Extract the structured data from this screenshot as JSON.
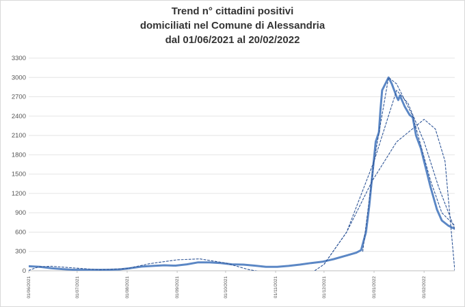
{
  "chart_data": {
    "type": "line",
    "title_lines": [
      "Trend n° cittadini positivi",
      "domiciliati nel Comune di Alessandria",
      "dal 01/06/2021 al 20/02/2022"
    ],
    "start_date": "01/06/2021",
    "end_date": "20/02/2022",
    "ylim": [
      0,
      3300
    ],
    "yticks": [
      "0",
      "300",
      "600",
      "900",
      "1200",
      "1500",
      "1800",
      "2100",
      "2400",
      "2700",
      "3000",
      "3300"
    ],
    "xticks": [
      "01/06/2021",
      "01/07/2021",
      "01/08/2021",
      "01/09/2021",
      "01/10/2021",
      "01/11/2021",
      "01/12/2021",
      "01/01/2022",
      "01/02/2022"
    ],
    "grid": "horizontal",
    "series": [
      {
        "color": "#5b87c5",
        "style": "solid",
        "points": [
          [
            "01/06/2021",
            70
          ],
          [
            "08/06/2021",
            60
          ],
          [
            "15/06/2021",
            40
          ],
          [
            "22/06/2021",
            25
          ],
          [
            "29/06/2021",
            15
          ],
          [
            "06/07/2021",
            15
          ],
          [
            "13/07/2021",
            15
          ],
          [
            "20/07/2021",
            15
          ],
          [
            "27/07/2021",
            20
          ],
          [
            "03/08/2021",
            40
          ],
          [
            "10/08/2021",
            65
          ],
          [
            "17/08/2021",
            75
          ],
          [
            "24/08/2021",
            85
          ],
          [
            "31/08/2021",
            80
          ],
          [
            "07/09/2021",
            100
          ],
          [
            "14/09/2021",
            130
          ],
          [
            "21/09/2021",
            130
          ],
          [
            "28/09/2021",
            120
          ],
          [
            "05/10/2021",
            100
          ],
          [
            "12/10/2021",
            95
          ],
          [
            "19/10/2021",
            80
          ],
          [
            "26/10/2021",
            60
          ],
          [
            "02/11/2021",
            60
          ],
          [
            "09/11/2021",
            75
          ],
          [
            "16/11/2021",
            95
          ],
          [
            "23/11/2021",
            120
          ],
          [
            "30/11/2021",
            140
          ],
          [
            "07/12/2021",
            180
          ],
          [
            "14/12/2021",
            230
          ],
          [
            "21/12/2021",
            280
          ],
          [
            "24/12/2021",
            320
          ],
          [
            "27/12/2021",
            600
          ],
          [
            "29/12/2021",
            1000
          ],
          [
            "31/12/2021",
            1500
          ],
          [
            "02/01/2022",
            2000
          ],
          [
            "04/01/2022",
            2150
          ],
          [
            "05/01/2022",
            2500
          ],
          [
            "06/01/2022",
            2800
          ],
          [
            "08/01/2022",
            2900
          ],
          [
            "10/01/2022",
            3000
          ],
          [
            "12/01/2022",
            2900
          ],
          [
            "15/01/2022",
            2700
          ],
          [
            "16/01/2022",
            2650
          ],
          [
            "17/01/2022",
            2720
          ],
          [
            "20/01/2022",
            2550
          ],
          [
            "23/01/2022",
            2420
          ],
          [
            "25/01/2022",
            2380
          ],
          [
            "27/01/2022",
            2100
          ],
          [
            "30/01/2022",
            1900
          ],
          [
            "02/02/2022",
            1600
          ],
          [
            "05/02/2022",
            1300
          ],
          [
            "09/02/2022",
            950
          ],
          [
            "12/02/2022",
            780
          ],
          [
            "16/02/2022",
            700
          ],
          [
            "20/02/2022",
            650
          ]
        ]
      },
      {
        "color": "#2e5597",
        "style": "dashed",
        "points": [
          [
            "01/06/2021",
            5
          ],
          [
            "07/06/2021",
            60
          ],
          [
            "15/06/2021",
            70
          ],
          [
            "01/07/2021",
            40
          ],
          [
            "15/07/2021",
            15
          ],
          [
            "01/08/2021",
            35
          ],
          [
            "15/08/2021",
            110
          ],
          [
            "01/09/2021",
            170
          ],
          [
            "15/09/2021",
            185
          ],
          [
            "01/10/2021",
            120
          ],
          [
            "15/10/2021",
            20
          ],
          [
            "24/10/2021",
            -20
          ],
          [
            "24/11/2021",
            -20
          ],
          [
            "01/12/2021",
            100
          ],
          [
            "15/12/2021",
            600
          ],
          [
            "01/01/2022",
            1700
          ],
          [
            "15/01/2022",
            2800
          ],
          [
            "22/01/2022",
            2600
          ],
          [
            "01/02/2022",
            2000
          ],
          [
            "10/02/2022",
            1300
          ],
          [
            "20/02/2022",
            650
          ]
        ]
      },
      {
        "color": "#2e5597",
        "style": "dashed",
        "points": [
          [
            "01/12/2021",
            100
          ],
          [
            "15/12/2021",
            600
          ],
          [
            "31/12/2021",
            1400
          ],
          [
            "15/01/2022",
            2000
          ],
          [
            "01/02/2022",
            2350
          ],
          [
            "08/02/2022",
            2200
          ],
          [
            "14/02/2022",
            1700
          ],
          [
            "20/02/2022",
            10
          ]
        ]
      },
      {
        "color": "#2e5597",
        "style": "dashed",
        "points": [
          [
            "25/12/2021",
            300
          ],
          [
            "01/01/2022",
            1700
          ],
          [
            "10/01/2022",
            3000
          ],
          [
            "15/01/2022",
            2900
          ],
          [
            "25/01/2022",
            2400
          ],
          [
            "05/02/2022",
            1400
          ],
          [
            "12/02/2022",
            900
          ],
          [
            "20/02/2022",
            700
          ]
        ]
      }
    ]
  }
}
